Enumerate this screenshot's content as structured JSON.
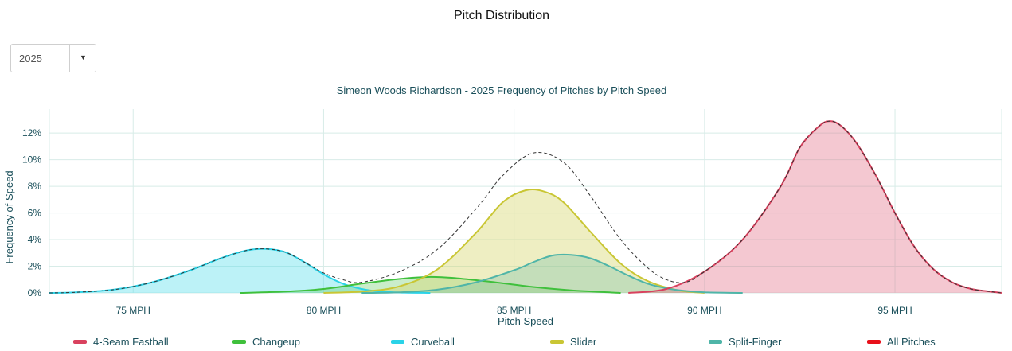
{
  "header": {
    "title": "Pitch Distribution"
  },
  "year_select": {
    "value": "2025"
  },
  "chart_data": {
    "type": "area",
    "title": "Simeon Woods Richardson - 2025 Frequency of Pitches by Pitch Speed",
    "xlabel": "Pitch Speed",
    "ylabel": "Frequency of Speed",
    "xlim": [
      72.8,
      97.8
    ],
    "ylim": [
      0,
      13.8
    ],
    "x_ticks": [
      {
        "value": 75,
        "label": "75 MPH"
      },
      {
        "value": 80,
        "label": "80 MPH"
      },
      {
        "value": 85,
        "label": "85 MPH"
      },
      {
        "value": 90,
        "label": "90 MPH"
      },
      {
        "value": 95,
        "label": "95 MPH"
      }
    ],
    "y_ticks": [
      {
        "value": 0,
        "label": "0%"
      },
      {
        "value": 2,
        "label": "2%"
      },
      {
        "value": 4,
        "label": "4%"
      },
      {
        "value": 6,
        "label": "6%"
      },
      {
        "value": 8,
        "label": "8%"
      },
      {
        "value": 10,
        "label": "10%"
      },
      {
        "value": 12,
        "label": "12%"
      }
    ],
    "grid": true,
    "legend_position": "bottom",
    "series": [
      {
        "name": "4-Seam Fastball",
        "color": "#d9415e",
        "fill": "rgba(225,110,135,0.38)",
        "x": [
          88.0,
          89.0,
          90.0,
          91.0,
          92.0,
          92.5,
          93.0,
          93.3,
          93.6,
          94.0,
          94.5,
          95.0,
          95.5,
          96.0,
          96.5,
          97.0,
          97.5,
          97.8
        ],
        "y": [
          0.0,
          0.3,
          1.6,
          4.0,
          8.0,
          10.9,
          12.5,
          12.9,
          12.5,
          11.2,
          8.8,
          6.0,
          3.5,
          1.8,
          0.8,
          0.3,
          0.1,
          0.0
        ]
      },
      {
        "name": "Changeup",
        "color": "#3fc03c",
        "fill": "rgba(90,200,90,0.32)",
        "x": [
          77.8,
          79.0,
          80.0,
          81.0,
          82.0,
          82.8,
          83.5,
          84.5,
          85.5,
          86.5,
          87.8
        ],
        "y": [
          0.0,
          0.1,
          0.3,
          0.7,
          1.05,
          1.2,
          1.1,
          0.8,
          0.45,
          0.2,
          0.0
        ]
      },
      {
        "name": "Curveball",
        "color": "#2ad3e8",
        "fill": "rgba(80,220,235,0.38)",
        "x": [
          72.8,
          73.5,
          74.5,
          75.5,
          76.5,
          77.3,
          78.0,
          78.5,
          79.0,
          79.5,
          80.0,
          80.5,
          81.0,
          81.5,
          82.0,
          82.8
        ],
        "y": [
          0.0,
          0.05,
          0.25,
          0.8,
          1.7,
          2.6,
          3.2,
          3.3,
          3.05,
          2.3,
          1.4,
          0.7,
          0.3,
          0.1,
          0.03,
          0.0
        ]
      },
      {
        "name": "Slider",
        "color": "#c9c634",
        "fill": "rgba(215,215,110,0.42)",
        "x": [
          80.0,
          81.0,
          82.0,
          83.0,
          84.0,
          84.7,
          85.3,
          85.8,
          86.3,
          87.0,
          87.8,
          88.5,
          89.3,
          90.0
        ],
        "y": [
          0.0,
          0.1,
          0.5,
          1.8,
          4.5,
          6.8,
          7.7,
          7.6,
          6.8,
          4.6,
          2.2,
          0.9,
          0.2,
          0.0
        ]
      },
      {
        "name": "Split-Finger",
        "color": "#4fb5a8",
        "fill": "rgba(100,185,170,0.30)",
        "x": [
          81.0,
          82.0,
          83.0,
          84.0,
          85.0,
          85.5,
          86.0,
          86.5,
          87.0,
          87.5,
          88.0,
          88.5,
          89.0,
          89.5,
          90.0,
          91.0
        ],
        "y": [
          0.0,
          0.05,
          0.25,
          0.8,
          1.7,
          2.3,
          2.8,
          2.85,
          2.6,
          2.0,
          1.3,
          0.7,
          0.35,
          0.15,
          0.05,
          0.0
        ]
      },
      {
        "name": "All Pitches",
        "color": "#e8101a",
        "line_color": "#333333",
        "dashed": true,
        "x": [
          72.8,
          73.5,
          74.5,
          75.5,
          76.5,
          77.3,
          78.0,
          78.5,
          79.0,
          79.5,
          80.0,
          80.5,
          81.0,
          82.0,
          83.0,
          84.0,
          84.7,
          85.5,
          86.3,
          87.0,
          87.8,
          88.5,
          89.0,
          89.5,
          90.0,
          91.0,
          92.0,
          92.5,
          93.0,
          93.3,
          93.6,
          94.0,
          94.5,
          95.0,
          95.5,
          96.0,
          96.5,
          97.0,
          97.5,
          97.8
        ],
        "y": [
          0.0,
          0.05,
          0.25,
          0.8,
          1.7,
          2.6,
          3.2,
          3.3,
          3.05,
          2.3,
          1.5,
          1.0,
          0.8,
          1.6,
          3.3,
          6.3,
          8.8,
          10.5,
          9.8,
          7.3,
          4.0,
          1.9,
          1.0,
          0.8,
          1.6,
          4.0,
          8.0,
          10.9,
          12.5,
          12.9,
          12.5,
          11.2,
          8.8,
          6.0,
          3.5,
          1.8,
          0.8,
          0.3,
          0.1,
          0.0
        ]
      }
    ]
  }
}
